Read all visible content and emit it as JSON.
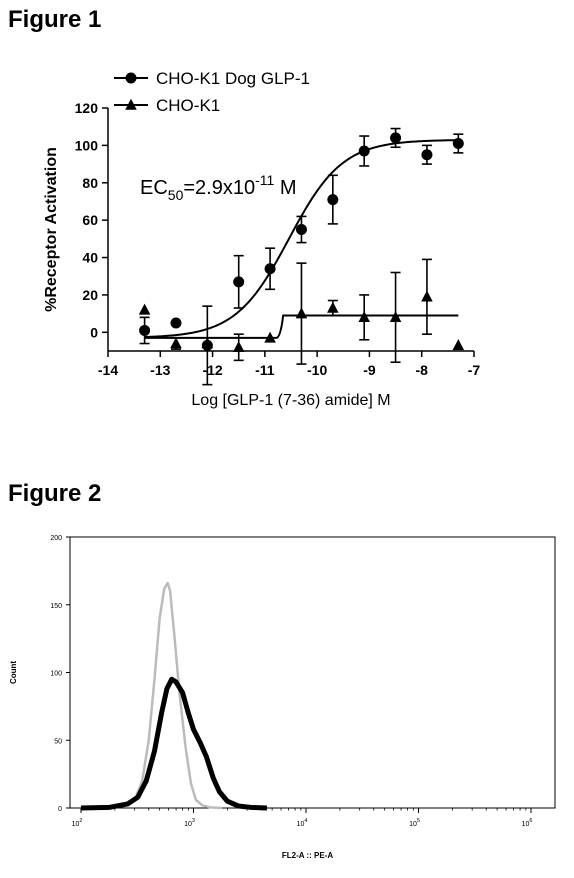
{
  "figures": [
    {
      "title": "Figure 1"
    },
    {
      "title": "Figure 2"
    }
  ],
  "chart_data": [
    {
      "type": "scatter",
      "ec50_main": "EC",
      "ec50_sub": "50",
      "ec50_mid": "=2.9x10",
      "ec50_sup": "-11",
      "ec50_unit": " M",
      "xlabel": "Log [GLP-1 (7-36) amide] M",
      "ylabel": "%Receptor Activation",
      "xlim": [
        -14,
        -7
      ],
      "ylim": [
        -10,
        120
      ],
      "x_ticks": [
        "-14",
        "-13",
        "-12",
        "-11",
        "-10",
        "-9",
        "-8",
        "-7"
      ],
      "y_ticks": [
        "0",
        "20",
        "40",
        "60",
        "80",
        "100",
        "120"
      ],
      "legend_position": "top-left",
      "series": [
        {
          "name": "CHO-K1 Dog GLP-1",
          "marker": "circle",
          "points": [
            {
              "x": -13.3,
              "y": 1,
              "err": 7
            },
            {
              "x": -12.7,
              "y": 5,
              "err": 0
            },
            {
              "x": -12.1,
              "y": -7,
              "err": 21
            },
            {
              "x": -11.5,
              "y": 27,
              "err": 14
            },
            {
              "x": -10.9,
              "y": 34,
              "err": 11
            },
            {
              "x": -10.3,
              "y": 55,
              "err": 7
            },
            {
              "x": -9.7,
              "y": 71,
              "err": 13
            },
            {
              "x": -9.1,
              "y": 97,
              "err": 8
            },
            {
              "x": -8.5,
              "y": 104,
              "err": 5
            },
            {
              "x": -7.9,
              "y": 95,
              "err": 5
            },
            {
              "x": -7.3,
              "y": 101,
              "err": 5
            }
          ],
          "fit": {
            "bottom": -3,
            "top": 103,
            "logEC50": -10.54,
            "hill": 0.85
          }
        },
        {
          "name": "CHO-K1",
          "marker": "triangle",
          "points": [
            {
              "x": -13.3,
              "y": 12,
              "err": 0
            },
            {
              "x": -12.7,
              "y": -6,
              "err": 3
            },
            {
              "x": -12.1,
              "y": -6,
              "err": 0
            },
            {
              "x": -11.5,
              "y": -8,
              "err": 7
            },
            {
              "x": -10.9,
              "y": -3,
              "err": 0
            },
            {
              "x": -10.3,
              "y": 10,
              "err": 27
            },
            {
              "x": -9.7,
              "y": 13,
              "err": 4
            },
            {
              "x": -9.1,
              "y": 8,
              "err": 12
            },
            {
              "x": -8.5,
              "y": 8,
              "err": 24
            },
            {
              "x": -7.9,
              "y": 19,
              "err": 20
            },
            {
              "x": -7.3,
              "y": -7,
              "err": 0
            }
          ],
          "fit": {
            "step_x": -10.7,
            "low": -3,
            "high": 9
          }
        }
      ]
    },
    {
      "type": "line",
      "xlabel": "FL2-A :: PE-A",
      "ylabel": "Count",
      "x_scale": "log",
      "xlim": [
        100,
        1000000
      ],
      "ylim": [
        0,
        200
      ],
      "x_ticks": [
        {
          "base": "10",
          "exp": "2"
        },
        {
          "base": "10",
          "exp": "3"
        },
        {
          "base": "10",
          "exp": "4"
        },
        {
          "base": "10",
          "exp": "5"
        },
        {
          "base": "10",
          "exp": "6"
        }
      ],
      "y_ticks": [
        "0",
        "50",
        "100",
        "150",
        "200"
      ],
      "series": [
        {
          "color": "#bbbbbb",
          "width": 2.5,
          "points": [
            [
              100,
              0
            ],
            [
              180,
              0.5
            ],
            [
              250,
              2
            ],
            [
              300,
              6
            ],
            [
              350,
              20
            ],
            [
              400,
              50
            ],
            [
              450,
              95
            ],
            [
              500,
              140
            ],
            [
              550,
              162
            ],
            [
              590,
              166
            ],
            [
              620,
              160
            ],
            [
              680,
              125
            ],
            [
              750,
              85
            ],
            [
              850,
              45
            ],
            [
              950,
              18
            ],
            [
              1050,
              6
            ],
            [
              1200,
              2
            ],
            [
              1400,
              0.5
            ],
            [
              1800,
              0
            ]
          ]
        },
        {
          "color": "#000000",
          "width": 5,
          "points": [
            [
              100,
              0
            ],
            [
              180,
              0.5
            ],
            [
              260,
              3
            ],
            [
              320,
              8
            ],
            [
              380,
              20
            ],
            [
              450,
              42
            ],
            [
              520,
              70
            ],
            [
              580,
              88
            ],
            [
              640,
              95
            ],
            [
              700,
              93
            ],
            [
              800,
              85
            ],
            [
              900,
              70
            ],
            [
              1000,
              58
            ],
            [
              1150,
              48
            ],
            [
              1300,
              38
            ],
            [
              1500,
              22
            ],
            [
              1700,
              12
            ],
            [
              2000,
              5
            ],
            [
              2500,
              1.5
            ],
            [
              3200,
              0.5
            ],
            [
              4500,
              0
            ]
          ]
        }
      ]
    }
  ]
}
